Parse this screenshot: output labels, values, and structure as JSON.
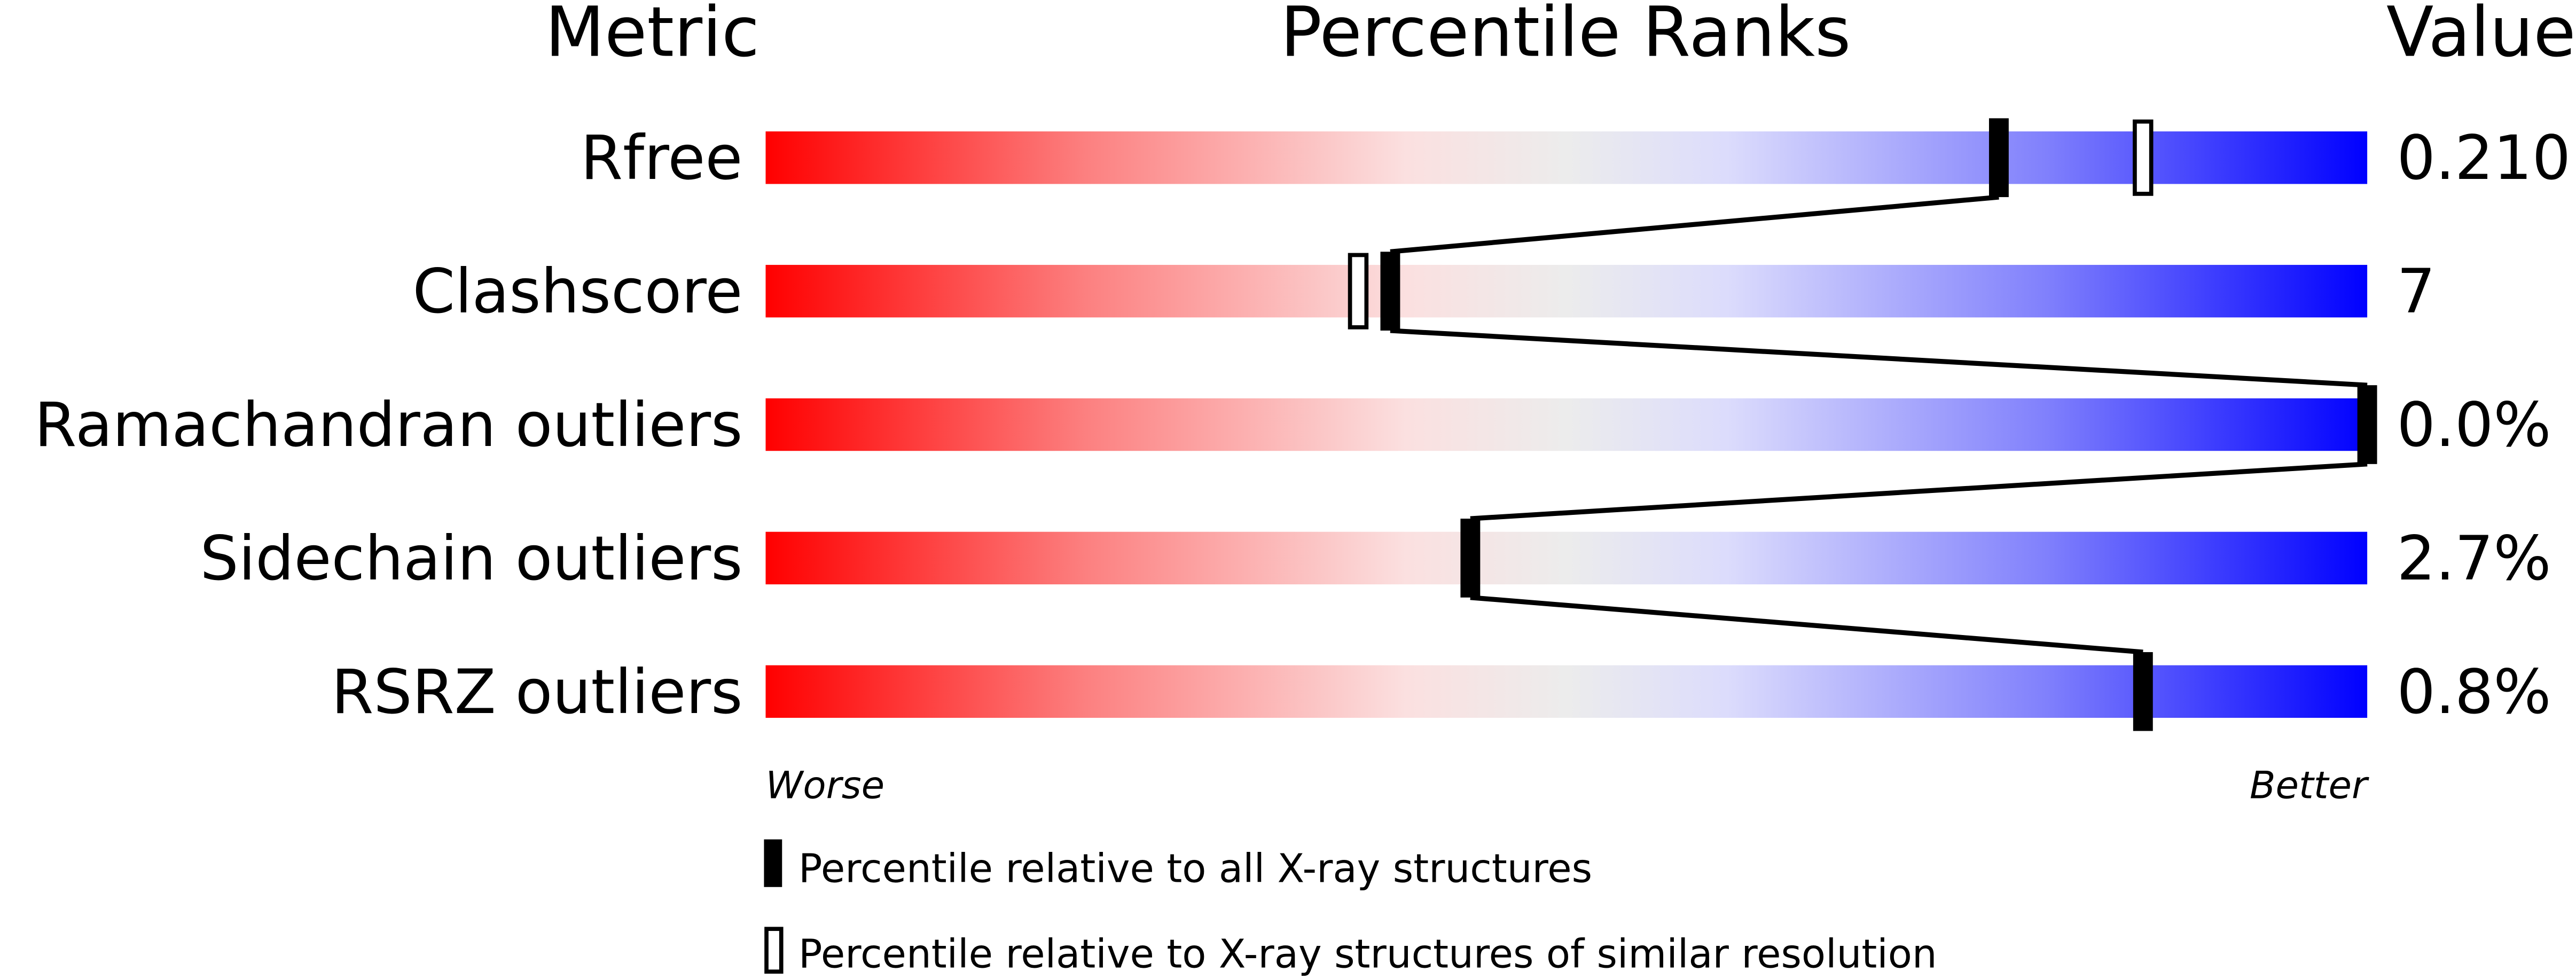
{
  "chart_data": {
    "type": "percentile-bar",
    "headers": {
      "metric": "Metric",
      "ranks": "Percentile Ranks",
      "value": "Value"
    },
    "xlim": [
      0,
      100
    ],
    "axis_labels": {
      "left": "Worse",
      "right": "Better"
    },
    "colors": {
      "worse": "#ff0000",
      "middle": "#eeeeee",
      "better": "#0000ff",
      "marker": "#000000"
    },
    "rows": [
      {
        "metric": "Rfree",
        "value": "0.210",
        "percentile_all": 77,
        "percentile_similar": 86
      },
      {
        "metric": "Clashscore",
        "value": "7",
        "percentile_all": 39,
        "percentile_similar": 37
      },
      {
        "metric": "Ramachandran outliers",
        "value": "0.0%",
        "percentile_all": 100,
        "percentile_similar": null
      },
      {
        "metric": "Sidechain outliers",
        "value": "2.7%",
        "percentile_all": 44,
        "percentile_similar": null
      },
      {
        "metric": "RSRZ outliers",
        "value": "0.8%",
        "percentile_all": 86,
        "percentile_similar": null
      }
    ],
    "legend": [
      {
        "marker": "filled",
        "label": "Percentile relative to all X-ray structures"
      },
      {
        "marker": "open",
        "label": "Percentile relative to X-ray structures of similar resolution"
      }
    ]
  }
}
